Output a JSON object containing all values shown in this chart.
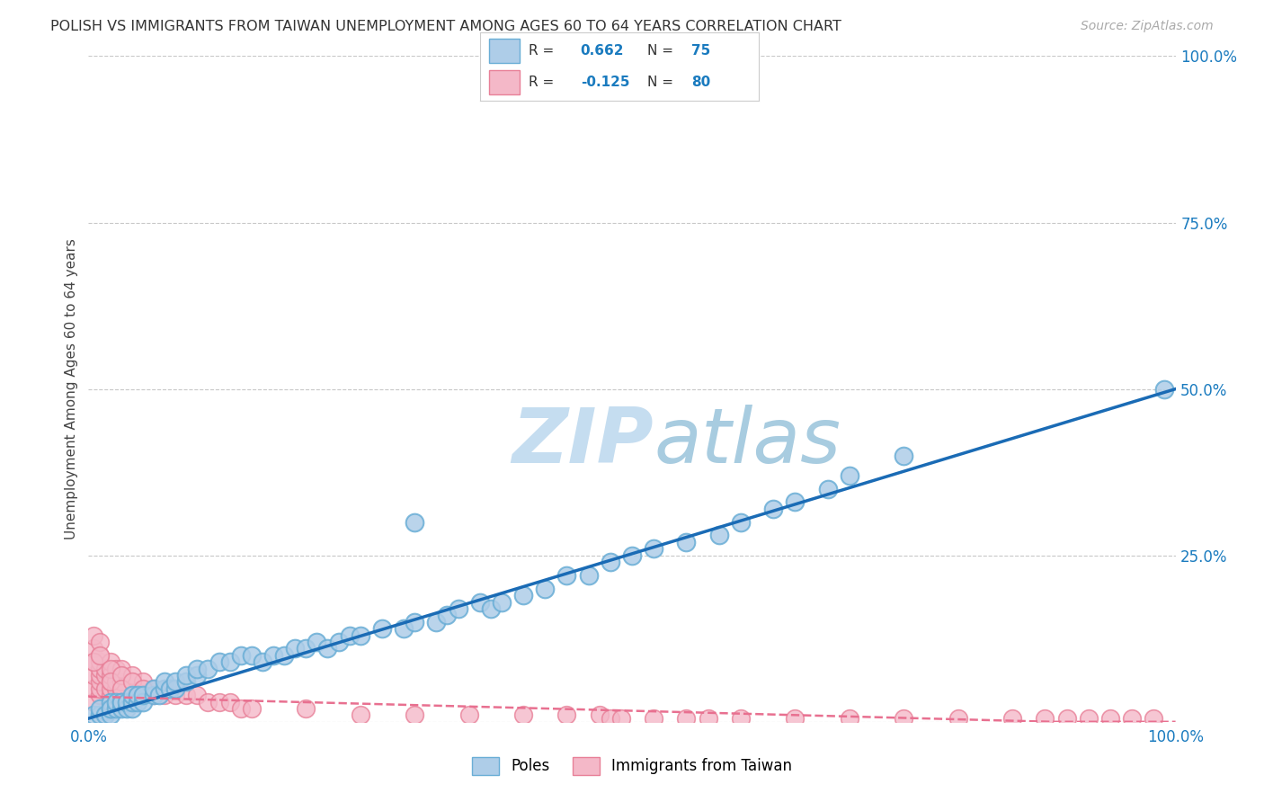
{
  "title": "POLISH VS IMMIGRANTS FROM TAIWAN UNEMPLOYMENT AMONG AGES 60 TO 64 YEARS CORRELATION CHART",
  "source": "Source: ZipAtlas.com",
  "ylabel": "Unemployment Among Ages 60 to 64 years",
  "watermark_zip": "ZIP",
  "watermark_atlas": "atlas",
  "xlim": [
    0,
    1.0
  ],
  "ylim": [
    0,
    1.0
  ],
  "poles_R": 0.662,
  "poles_N": 75,
  "taiwan_R": -0.125,
  "taiwan_N": 80,
  "poles_color_face": "#aecde8",
  "poles_color_edge": "#6aaed6",
  "taiwan_color_face": "#f4b8c8",
  "taiwan_color_edge": "#e88098",
  "regression_poles_color": "#1a6bb5",
  "regression_taiwan_color": "#e87090",
  "background_color": "#ffffff",
  "grid_color": "#c8c8c8",
  "ytick_positions": [
    0.0,
    0.25,
    0.5,
    0.75,
    1.0
  ],
  "right_ytick_labels": [
    "100.0%",
    "75.0%",
    "50.0%",
    "25.0%"
  ],
  "right_ytick_positions": [
    1.0,
    0.75,
    0.5,
    0.25
  ],
  "poles_scatter_x": [
    0.005,
    0.01,
    0.01,
    0.015,
    0.02,
    0.02,
    0.02,
    0.02,
    0.025,
    0.025,
    0.03,
    0.03,
    0.03,
    0.035,
    0.035,
    0.04,
    0.04,
    0.04,
    0.045,
    0.045,
    0.05,
    0.05,
    0.06,
    0.06,
    0.065,
    0.07,
    0.07,
    0.075,
    0.08,
    0.08,
    0.09,
    0.09,
    0.1,
    0.1,
    0.11,
    0.12,
    0.13,
    0.14,
    0.15,
    0.16,
    0.17,
    0.18,
    0.19,
    0.2,
    0.21,
    0.22,
    0.23,
    0.24,
    0.25,
    0.27,
    0.29,
    0.3,
    0.32,
    0.33,
    0.34,
    0.36,
    0.37,
    0.38,
    0.4,
    0.42,
    0.44,
    0.46,
    0.48,
    0.5,
    0.52,
    0.55,
    0.58,
    0.6,
    0.63,
    0.65,
    0.68,
    0.7,
    0.75,
    0.99,
    0.3
  ],
  "poles_scatter_y": [
    0.01,
    0.01,
    0.02,
    0.01,
    0.01,
    0.02,
    0.03,
    0.02,
    0.02,
    0.03,
    0.02,
    0.03,
    0.03,
    0.02,
    0.03,
    0.02,
    0.03,
    0.04,
    0.03,
    0.04,
    0.03,
    0.04,
    0.04,
    0.05,
    0.04,
    0.05,
    0.06,
    0.05,
    0.05,
    0.06,
    0.06,
    0.07,
    0.07,
    0.08,
    0.08,
    0.09,
    0.09,
    0.1,
    0.1,
    0.09,
    0.1,
    0.1,
    0.11,
    0.11,
    0.12,
    0.11,
    0.12,
    0.13,
    0.13,
    0.14,
    0.14,
    0.15,
    0.15,
    0.16,
    0.17,
    0.18,
    0.17,
    0.18,
    0.19,
    0.2,
    0.22,
    0.22,
    0.24,
    0.25,
    0.26,
    0.27,
    0.28,
    0.3,
    0.32,
    0.33,
    0.35,
    0.37,
    0.4,
    0.5,
    0.3
  ],
  "taiwan_scatter_x": [
    0.005,
    0.005,
    0.005,
    0.005,
    0.005,
    0.01,
    0.01,
    0.01,
    0.01,
    0.01,
    0.01,
    0.01,
    0.015,
    0.015,
    0.015,
    0.02,
    0.02,
    0.02,
    0.02,
    0.02,
    0.025,
    0.025,
    0.025,
    0.03,
    0.03,
    0.03,
    0.03,
    0.03,
    0.04,
    0.04,
    0.04,
    0.05,
    0.05,
    0.05,
    0.06,
    0.06,
    0.07,
    0.07,
    0.08,
    0.09,
    0.1,
    0.11,
    0.12,
    0.13,
    0.14,
    0.15,
    0.2,
    0.25,
    0.3,
    0.35,
    0.4,
    0.44,
    0.47,
    0.48,
    0.49,
    0.52,
    0.55,
    0.57,
    0.6,
    0.65,
    0.7,
    0.75,
    0.8,
    0.85,
    0.88,
    0.9,
    0.92,
    0.94,
    0.96,
    0.98,
    0.005,
    0.005,
    0.01,
    0.01,
    0.02,
    0.02,
    0.03,
    0.03,
    0.04,
    0.05
  ],
  "taiwan_scatter_y": [
    0.03,
    0.05,
    0.07,
    0.09,
    0.11,
    0.04,
    0.05,
    0.06,
    0.07,
    0.08,
    0.09,
    0.1,
    0.05,
    0.07,
    0.08,
    0.04,
    0.05,
    0.06,
    0.07,
    0.09,
    0.05,
    0.06,
    0.08,
    0.04,
    0.05,
    0.06,
    0.07,
    0.08,
    0.04,
    0.06,
    0.07,
    0.04,
    0.05,
    0.06,
    0.04,
    0.05,
    0.04,
    0.05,
    0.04,
    0.04,
    0.04,
    0.03,
    0.03,
    0.03,
    0.02,
    0.02,
    0.02,
    0.01,
    0.01,
    0.01,
    0.01,
    0.01,
    0.01,
    0.005,
    0.005,
    0.005,
    0.005,
    0.005,
    0.005,
    0.005,
    0.005,
    0.005,
    0.005,
    0.005,
    0.005,
    0.005,
    0.005,
    0.005,
    0.005,
    0.005,
    0.13,
    0.09,
    0.12,
    0.1,
    0.08,
    0.06,
    0.07,
    0.05,
    0.06,
    0.05
  ]
}
